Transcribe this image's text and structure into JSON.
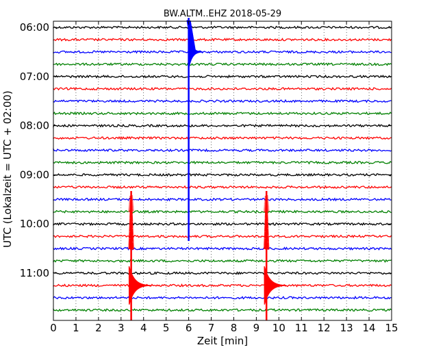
{
  "chart_data": {
    "type": "line",
    "title": "BW.ALTM..EHZ 2018-05-29",
    "xlabel": "Zeit  [min]",
    "ylabel": "UTC (Lokalzeit = UTC + 02:00)",
    "xlim": [
      0,
      15
    ],
    "x_ticks": [
      "0",
      "1",
      "2",
      "3",
      "4",
      "5",
      "6",
      "7",
      "8",
      "9",
      "10",
      "11",
      "12",
      "13",
      "14",
      "15"
    ],
    "y_ticks": [
      "06:00",
      "07:00",
      "08:00",
      "09:00",
      "10:00",
      "11:00"
    ],
    "grid": "vertical-dotted",
    "row_minutes": 15,
    "trace_colors": [
      "#000000",
      "#ff0000",
      "#0000ff",
      "#008000"
    ],
    "rows": [
      {
        "start": "06:00",
        "color": "#000000"
      },
      {
        "start": "06:15",
        "color": "#ff0000"
      },
      {
        "start": "06:30",
        "color": "#0000ff"
      },
      {
        "start": "06:45",
        "color": "#008000"
      },
      {
        "start": "07:00",
        "color": "#000000"
      },
      {
        "start": "07:15",
        "color": "#ff0000"
      },
      {
        "start": "07:30",
        "color": "#0000ff"
      },
      {
        "start": "07:45",
        "color": "#008000"
      },
      {
        "start": "08:00",
        "color": "#000000"
      },
      {
        "start": "08:15",
        "color": "#ff0000"
      },
      {
        "start": "08:30",
        "color": "#0000ff"
      },
      {
        "start": "08:45",
        "color": "#008000"
      },
      {
        "start": "09:00",
        "color": "#000000"
      },
      {
        "start": "09:15",
        "color": "#ff0000"
      },
      {
        "start": "09:30",
        "color": "#0000ff"
      },
      {
        "start": "09:45",
        "color": "#008000"
      },
      {
        "start": "10:00",
        "color": "#000000"
      },
      {
        "start": "10:15",
        "color": "#ff0000"
      },
      {
        "start": "10:30",
        "color": "#0000ff"
      },
      {
        "start": "10:45",
        "color": "#008000"
      },
      {
        "start": "11:00",
        "color": "#000000"
      },
      {
        "start": "11:15",
        "color": "#ff0000"
      },
      {
        "start": "11:30",
        "color": "#0000ff"
      },
      {
        "start": "11:45",
        "color": "#008000"
      }
    ],
    "events": [
      {
        "row": 2,
        "minute": 6.0,
        "color": "#0000ff"
      },
      {
        "row": 21,
        "minute": 3.45,
        "color": "#ff0000"
      },
      {
        "row": 21,
        "minute": 9.45,
        "color": "#ff0000"
      }
    ]
  }
}
